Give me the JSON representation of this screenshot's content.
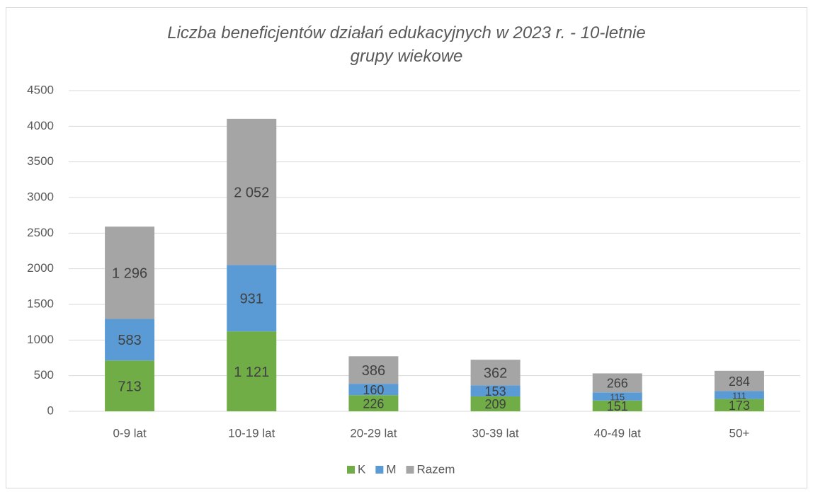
{
  "chart_data": {
    "type": "stacked-bar",
    "title": "Liczba beneficjentów działań edukacyjnych w 2023 r. - 10-letnie grupy wiekowe",
    "categories": [
      "0-9 lat",
      "10-19 lat",
      "20-29 lat",
      "30-39 lat",
      "40-49 lat",
      "50+"
    ],
    "series": [
      {
        "name": "K",
        "color": "#70ad47",
        "values": [
          713,
          1121,
          226,
          209,
          151,
          173
        ],
        "value_labels": [
          "713",
          "1 121",
          "226",
          "209",
          "151",
          "173"
        ]
      },
      {
        "name": "M",
        "color": "#5b9bd5",
        "values": [
          583,
          931,
          160,
          153,
          115,
          111
        ],
        "value_labels": [
          "583",
          "931",
          "160",
          "153",
          "115",
          "111"
        ]
      },
      {
        "name": "Razem",
        "color": "#a5a5a5",
        "values": [
          1296,
          2052,
          386,
          362,
          266,
          284
        ],
        "value_labels": [
          "1 296",
          "2 052",
          "386",
          "362",
          "266",
          "284"
        ]
      }
    ],
    "ylim": [
      0,
      4500
    ],
    "yticks": [
      0,
      500,
      1000,
      1500,
      2000,
      2500,
      3000,
      3500,
      4000,
      4500
    ],
    "grid": true,
    "legend": "bottom"
  }
}
